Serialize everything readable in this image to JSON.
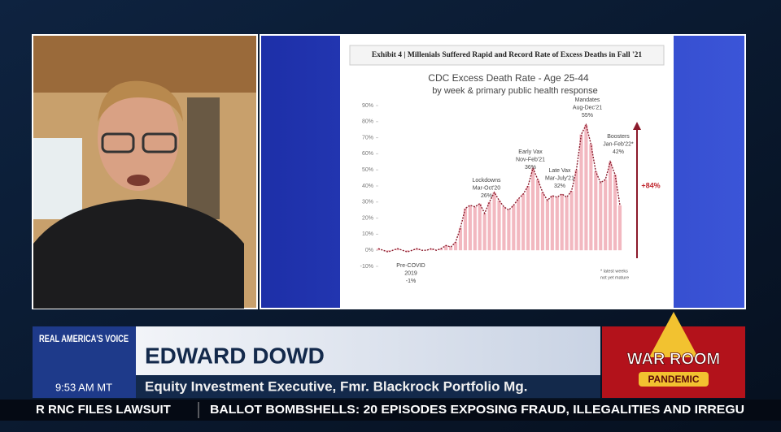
{
  "network": {
    "name": "REAL AMERICA'S VOICE",
    "time": "9:53 AM MT"
  },
  "lower_third": {
    "name": "EDWARD DOWD",
    "title": "Equity Investment Executive, Fmr. Blackrock Portfolio Mg."
  },
  "logo": {
    "line1": "WAR ROOM",
    "line2": "PANDEMIC"
  },
  "ticker": {
    "left": "R RNC FILES LAWSUIT",
    "right": "BALLOT BOMBSHELLS: 20 EPISODES EXPOSING FRAUD, ILLEGALITIES AND IRREGU"
  },
  "exhibit": {
    "heading": "Exhibit 4 | Millenials Suffered Rapid and Record Rate of Excess Deaths in Fall '21",
    "chart_data": {
      "type": "line",
      "title": "CDC Excess Death Rate - Age 25-44",
      "subtitle": "by week & primary public health response",
      "values": [
        1,
        0,
        -1,
        0,
        1,
        0,
        -1,
        0,
        1,
        0,
        0,
        1,
        0,
        1,
        3,
        2,
        5,
        14,
        26,
        28,
        27,
        29,
        23,
        30,
        36,
        31,
        27,
        25,
        28,
        32,
        35,
        40,
        51,
        44,
        36,
        31,
        34,
        33,
        35,
        33,
        37,
        50,
        72,
        78,
        66,
        49,
        42,
        44,
        55,
        47,
        28
      ],
      "ylim": [
        -10,
        90
      ],
      "yticks": [
        {
          "value": -10,
          "label": "-10%"
        },
        {
          "value": 0,
          "label": "0%"
        },
        {
          "value": 10,
          "label": "10%"
        },
        {
          "value": 20,
          "label": "20%"
        },
        {
          "value": 30,
          "label": "30%"
        },
        {
          "value": 40,
          "label": "40%"
        },
        {
          "value": 50,
          "label": "50%"
        },
        {
          "value": 60,
          "label": "60%"
        },
        {
          "value": 70,
          "label": "70%"
        },
        {
          "value": 80,
          "label": "80%"
        },
        {
          "value": 90,
          "label": "90%"
        }
      ],
      "color": "#8b1a2b",
      "annotations": [
        {
          "lines": [
            "Pre-COVID",
            "2019",
            "-1%"
          ]
        },
        {
          "lines": [
            "Lockdowns",
            "Mar-Oct'20",
            "26%"
          ]
        },
        {
          "lines": [
            "Early Vax",
            "Nov-Feb'21",
            "36%"
          ]
        },
        {
          "lines": [
            "Late Vax",
            "Mar-July'21",
            "32%"
          ]
        },
        {
          "lines": [
            "Mandates",
            "Aug-Dec'21",
            "55%"
          ]
        },
        {
          "lines": [
            "Boosters",
            "Jan-Feb'22*",
            "42%"
          ]
        }
      ],
      "change_label": "+84%",
      "footnote": [
        "* latest weeks",
        "not yet mature"
      ]
    }
  }
}
